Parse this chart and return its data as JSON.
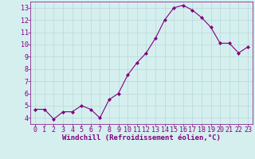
{
  "x": [
    0,
    1,
    2,
    3,
    4,
    5,
    6,
    7,
    8,
    9,
    10,
    11,
    12,
    13,
    14,
    15,
    16,
    17,
    18,
    19,
    20,
    21,
    22,
    23
  ],
  "y": [
    4.7,
    4.7,
    3.9,
    4.5,
    4.5,
    5.0,
    4.7,
    4.0,
    5.5,
    6.0,
    7.5,
    8.5,
    9.3,
    10.5,
    12.0,
    13.0,
    13.2,
    12.8,
    12.2,
    11.4,
    10.1,
    10.1,
    9.3,
    9.8
  ],
  "line_color": "#800080",
  "marker": "D",
  "marker_size": 2.0,
  "bg_color": "#d5efef",
  "grid_color": "#b8d8d8",
  "xlabel": "Windchill (Refroidissement éolien,°C)",
  "xlabel_color": "#800080",
  "tick_color": "#800080",
  "ylim": [
    3.5,
    13.5
  ],
  "xlim": [
    -0.5,
    23.5
  ],
  "yticks": [
    4,
    5,
    6,
    7,
    8,
    9,
    10,
    11,
    12,
    13
  ],
  "xticks": [
    0,
    1,
    2,
    3,
    4,
    5,
    6,
    7,
    8,
    9,
    10,
    11,
    12,
    13,
    14,
    15,
    16,
    17,
    18,
    19,
    20,
    21,
    22,
    23
  ],
  "spine_color": "#800080",
  "tick_fontsize": 6.0,
  "xlabel_fontsize": 6.5
}
